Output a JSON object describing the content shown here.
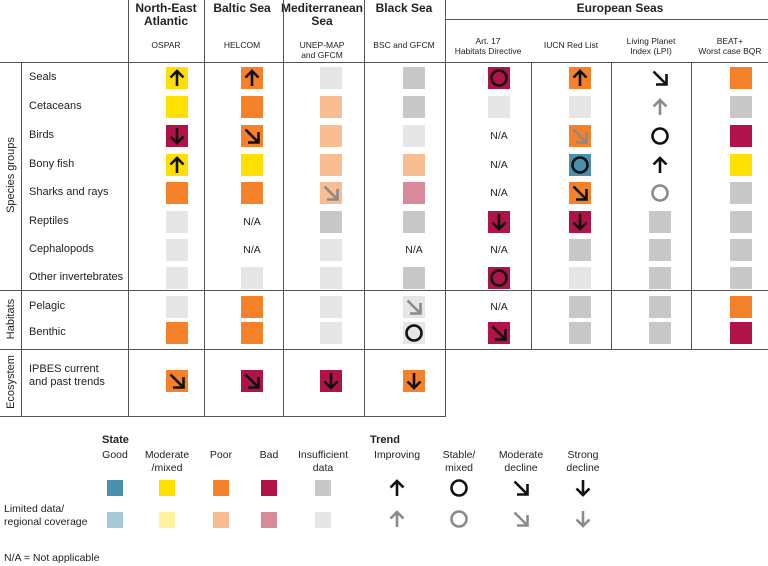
{
  "header": {
    "regions": [
      {
        "name": "North-East\nAtlantic",
        "source": "OSPAR"
      },
      {
        "name": "Baltic Sea",
        "source": "HELCOM"
      },
      {
        "name": "Mediterranean\nSea",
        "source": "UNEP-MAP\nand GFCM"
      },
      {
        "name": "Black Sea",
        "source": "BSC and GFCM"
      }
    ],
    "european_seas": "European Seas",
    "european_sources": [
      "Art. 17\nHabitats Directive",
      "IUCN Red List",
      "Living Planet\nIndex (LPI)",
      "BEAT+\nWorst case BQR"
    ]
  },
  "groups": [
    {
      "label": "Species groups"
    },
    {
      "label": "Habitats"
    },
    {
      "label": "Ecosystem"
    }
  ],
  "na_text": "N/A",
  "colors": {
    "good": "#4a8fad",
    "moderate": "#ffe000",
    "poor": "#f5822a",
    "bad": "#b0134a",
    "insufficient": "#c8c8c8",
    "good_l": "#a6c8d9",
    "moderate_l": "#fff3a0",
    "poor_l": "#f9bd93",
    "bad_l": "#d98a9a",
    "insufficient_l": "#e6e6e6"
  },
  "rows": [
    {
      "label": "Seals",
      "cells": [
        "moderate|up",
        "poor|up",
        "insufficient_l",
        "insufficient",
        "bad|stable",
        "poor|up",
        "none|down-dark-diag-up-l",
        "poor"
      ]
    },
    {
      "label": "Cetaceans",
      "cells": [
        "moderate",
        "poor",
        "poor_l",
        "insufficient",
        "insufficient_l",
        "insufficient_l",
        "none|up-l",
        "insufficient"
      ]
    },
    {
      "label": "Birds",
      "cells": [
        "bad|down",
        "poor|moddecline",
        "poor_l",
        "insufficient_l",
        "na",
        "poor|moddecline-l",
        "none|stable",
        "bad"
      ]
    },
    {
      "label": "Bony fish",
      "cells": [
        "moderate|up",
        "moderate",
        "poor_l",
        "poor_l",
        "na",
        "good|stable",
        "none|up",
        "moderate"
      ]
    },
    {
      "label": "Sharks and rays",
      "cells": [
        "poor",
        "poor",
        "poor_l|moddecline-l",
        "bad_l",
        "na",
        "poor|moddecline",
        "none|stable-l",
        "insufficient"
      ]
    },
    {
      "label": "Reptiles",
      "cells": [
        "insufficient_l",
        "na",
        "insufficient",
        "insufficient",
        "bad|down",
        "bad|down",
        "insufficient",
        "insufficient"
      ]
    },
    {
      "label": "Cephalopods",
      "cells": [
        "insufficient_l",
        "na",
        "insufficient_l",
        "na",
        "na",
        "insufficient",
        "insufficient",
        "insufficient"
      ]
    },
    {
      "label": "Other invertebrates",
      "cells": [
        "insufficient_l",
        "insufficient_l",
        "insufficient_l",
        "insufficient",
        "bad|stable",
        "insufficient_l",
        "insufficient",
        "insufficient"
      ]
    },
    {
      "label": "Pelagic",
      "cells": [
        "insufficient_l",
        "poor",
        "insufficient_l",
        "insufficient_l|moddecline-l",
        "na",
        "insufficient",
        "insufficient",
        "poor"
      ]
    },
    {
      "label": "Benthic",
      "cells": [
        "poor",
        "poor",
        "insufficient_l",
        "insufficient_l|stable",
        "bad|moddecline",
        "insufficient",
        "insufficient",
        "bad"
      ]
    },
    {
      "label": "IPBES current\nand past trends",
      "cells": [
        "poor|moddecline",
        "bad|moddecline",
        "bad|down",
        "poor|down"
      ]
    }
  ],
  "legend": {
    "state_title": "State",
    "state_items": [
      "Good",
      "Moderate\n/mixed",
      "Poor",
      "Bad",
      "Insufficient\ndata"
    ],
    "trend_title": "Trend",
    "trend_items": [
      "Improving",
      "Stable/\nmixed",
      "Moderate\ndecline",
      "Strong\ndecline"
    ],
    "limited_label": "Limited data/\nregional coverage",
    "na_note": "N/A = Not applicable"
  }
}
